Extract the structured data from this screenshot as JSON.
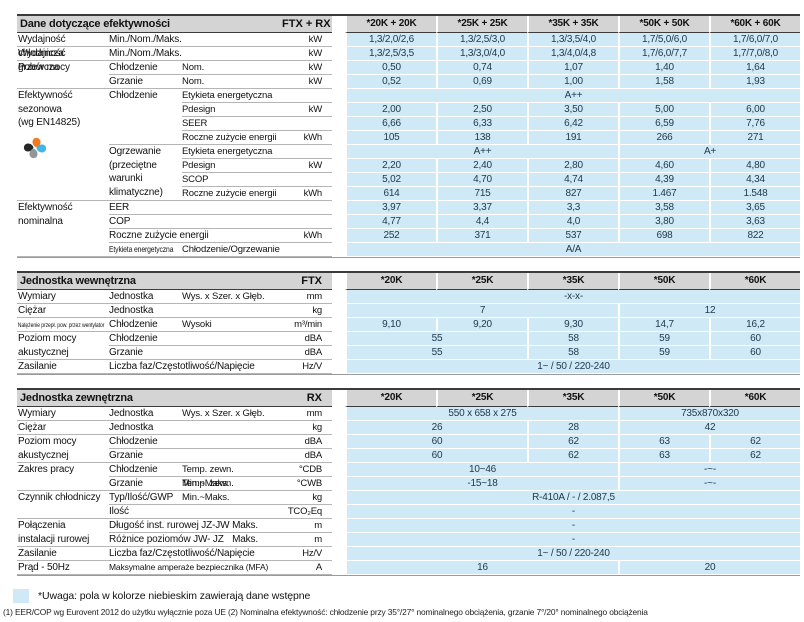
{
  "colors": {
    "data_cell_bg": "#cfe9f7",
    "section_header_bg": "#d4d4d4",
    "pinwheel_petals": [
      "#f07c1e",
      "#272727",
      "#45b5e8",
      "#919699"
    ]
  },
  "sections": [
    {
      "title": "Dane dotyczące efektywności",
      "model": "FTX + RX",
      "columns": [
        "*20K + 20K",
        "*25K + 25K",
        "*35K + 35K",
        "*50K + 50K",
        "*60K + 60K"
      ],
      "labels": [
        {
          "r": 1,
          "c": 1,
          "t": "Wydajność chłodnicza"
        },
        {
          "r": 1,
          "c": 2,
          "cs": 2,
          "t": "Min./Nom./Maks."
        },
        {
          "r": 2,
          "c": 1,
          "t": "Wydajność grzewcza"
        },
        {
          "r": 2,
          "c": 2,
          "cs": 2,
          "t": "Min./Nom./Maks."
        },
        {
          "r": 3,
          "c": 1,
          "rs": 2,
          "t": "Pobór mocy"
        },
        {
          "r": 3,
          "c": 2,
          "t": "Chłodzenie"
        },
        {
          "r": 3,
          "c": 3,
          "t": "Nom."
        },
        {
          "r": 4,
          "c": 2,
          "t": "Grzanie"
        },
        {
          "r": 4,
          "c": 3,
          "t": "Nom."
        },
        {
          "r": 5,
          "c": 1,
          "rs": 8,
          "t": "Efektywność\nsezonowa\n(wg EN14825)",
          "icon": "seasonal-efficiency-pinwheel-icon"
        },
        {
          "r": 5,
          "c": 2,
          "rs": 4,
          "t": "Chłodzenie"
        },
        {
          "r": 5,
          "c": 3,
          "t": "Etykieta energetyczna"
        },
        {
          "r": 6,
          "c": 3,
          "t": "Pdesign"
        },
        {
          "r": 7,
          "c": 3,
          "t": "SEER"
        },
        {
          "r": 8,
          "c": 3,
          "t": "Roczne zużycie energii"
        },
        {
          "r": 9,
          "c": 2,
          "rs": 4,
          "t": "Ogrzewanie\n(przeciętne\nwarunki\nklimatyczne)"
        },
        {
          "r": 9,
          "c": 3,
          "t": "Etykieta energetyczna"
        },
        {
          "r": 10,
          "c": 3,
          "t": "Pdesign"
        },
        {
          "r": 11,
          "c": 3,
          "t": "SCOP"
        },
        {
          "r": 12,
          "c": 3,
          "t": "Roczne zużycie energii"
        },
        {
          "r": 13,
          "c": 1,
          "rs": 4,
          "t": "Efektywność\nnominalna"
        },
        {
          "r": 13,
          "c": 2,
          "cs": 2,
          "t": "EER"
        },
        {
          "r": 14,
          "c": 2,
          "cs": 2,
          "t": "COP"
        },
        {
          "r": 15,
          "c": 2,
          "cs": 2,
          "t": "Roczne zużycie energii"
        },
        {
          "r": 16,
          "c": 2,
          "t": "Etykieta energetyczna",
          "s": "smx"
        },
        {
          "r": 16,
          "c": 3,
          "t": "Chłodzenie/Ogrzewanie"
        }
      ],
      "units": [
        "kW",
        "kW",
        "kW",
        "kW",
        "",
        "kW",
        "",
        "kWh",
        "",
        "kW",
        "",
        "kWh",
        "",
        "",
        "kWh",
        ""
      ],
      "values": [
        [
          [
            "1,3/2,0/2,6",
            1
          ],
          [
            "1,3/2,5/3,0",
            1
          ],
          [
            "1,3/3,5/4,0",
            1
          ],
          [
            "1,7/5,0/6,0",
            1
          ],
          [
            "1,7/6,0/7,0",
            1
          ]
        ],
        [
          [
            "1,3/2,5/3,5",
            1
          ],
          [
            "1,3/3,0/4,0",
            1
          ],
          [
            "1,3/4,0/4,8",
            1
          ],
          [
            "1,7/6,0/7,7",
            1
          ],
          [
            "1,7/7,0/8,0",
            1
          ]
        ],
        [
          [
            "0,50",
            1
          ],
          [
            "0,74",
            1
          ],
          [
            "1,07",
            1
          ],
          [
            "1,40",
            1
          ],
          [
            "1,64",
            1
          ]
        ],
        [
          [
            "0,52",
            1
          ],
          [
            "0,69",
            1
          ],
          [
            "1,00",
            1
          ],
          [
            "1,58",
            1
          ],
          [
            "1,93",
            1
          ]
        ],
        [
          [
            "A++",
            5
          ]
        ],
        [
          [
            "2,00",
            1
          ],
          [
            "2,50",
            1
          ],
          [
            "3,50",
            1
          ],
          [
            "5,00",
            1
          ],
          [
            "6,00",
            1
          ]
        ],
        [
          [
            "6,66",
            1
          ],
          [
            "6,33",
            1
          ],
          [
            "6,42",
            1
          ],
          [
            "6,59",
            1
          ],
          [
            "7,76",
            1
          ]
        ],
        [
          [
            "105",
            1
          ],
          [
            "138",
            1
          ],
          [
            "191",
            1
          ],
          [
            "266",
            1
          ],
          [
            "271",
            1
          ]
        ],
        [
          [
            "A++",
            3
          ],
          [
            "A+",
            2
          ]
        ],
        [
          [
            "2,20",
            1
          ],
          [
            "2,40",
            1
          ],
          [
            "2,80",
            1
          ],
          [
            "4,60",
            1
          ],
          [
            "4,80",
            1
          ]
        ],
        [
          [
            "5,02",
            1
          ],
          [
            "4,70",
            1
          ],
          [
            "4,74",
            1
          ],
          [
            "4,39",
            1
          ],
          [
            "4,34",
            1
          ]
        ],
        [
          [
            "614",
            1
          ],
          [
            "715",
            1
          ],
          [
            "827",
            1
          ],
          [
            "1.467",
            1
          ],
          [
            "1.548",
            1
          ]
        ],
        [
          [
            "3,97",
            1
          ],
          [
            "3,37",
            1
          ],
          [
            "3,3",
            1
          ],
          [
            "3,58",
            1
          ],
          [
            "3,65",
            1
          ]
        ],
        [
          [
            "4,77",
            1
          ],
          [
            "4,4",
            1
          ],
          [
            "4,0",
            1
          ],
          [
            "3,80",
            1
          ],
          [
            "3,63",
            1
          ]
        ],
        [
          [
            "252",
            1
          ],
          [
            "371",
            1
          ],
          [
            "537",
            1
          ],
          [
            "698",
            1
          ],
          [
            "822",
            1
          ]
        ],
        [
          [
            "A/A",
            5
          ]
        ]
      ]
    },
    {
      "title": "Jednostka wewnętrzna",
      "model": "FTX",
      "columns": [
        "*20K",
        "*25K",
        "*35K",
        "*50K",
        "*60K"
      ],
      "labels": [
        {
          "r": 1,
          "c": 1,
          "t": "Wymiary"
        },
        {
          "r": 1,
          "c": 2,
          "t": "Jednostka"
        },
        {
          "r": 1,
          "c": 3,
          "t": "Wys. x Szer. x Głęb."
        },
        {
          "r": 2,
          "c": 1,
          "t": "Ciężar"
        },
        {
          "r": 2,
          "c": 2,
          "cs": 2,
          "t": "Jednostka"
        },
        {
          "r": 3,
          "c": 1,
          "t": "Natężenie przepł. pow. przez wentylator",
          "s": "xs"
        },
        {
          "r": 3,
          "c": 2,
          "t": "Chłodzenie"
        },
        {
          "r": 3,
          "c": 3,
          "t": "Wysoki"
        },
        {
          "r": 4,
          "c": 1,
          "rs": 2,
          "t": "Poziom mocy\nakustycznej"
        },
        {
          "r": 4,
          "c": 2,
          "cs": 2,
          "t": "Chłodzenie"
        },
        {
          "r": 5,
          "c": 2,
          "cs": 2,
          "t": "Grzanie"
        },
        {
          "r": 6,
          "c": 1,
          "t": "Zasilanie"
        },
        {
          "r": 6,
          "c": 2,
          "cs": 2,
          "t": "Liczba faz/Częstotliwość/Napięcie"
        }
      ],
      "units": [
        "mm",
        "kg",
        "m³/min",
        "dBA",
        "dBA",
        "Hz/V"
      ],
      "values": [
        [
          [
            "-x-x-",
            5
          ]
        ],
        [
          [
            "7",
            3
          ],
          [
            "12",
            2
          ]
        ],
        [
          [
            "9,10",
            1
          ],
          [
            "9,20",
            1
          ],
          [
            "9,30",
            1
          ],
          [
            "14,7",
            1
          ],
          [
            "16,2",
            1
          ]
        ],
        [
          [
            "55",
            2
          ],
          [
            "58",
            1
          ],
          [
            "59",
            1
          ],
          [
            "60",
            1
          ]
        ],
        [
          [
            "55",
            2
          ],
          [
            "58",
            1
          ],
          [
            "59",
            1
          ],
          [
            "60",
            1
          ]
        ],
        [
          [
            "1~ / 50 / 220-240",
            5
          ]
        ]
      ]
    },
    {
      "title": "Jednostka zewnętrzna",
      "model": "RX",
      "columns": [
        "*20K",
        "*25K",
        "*35K",
        "*50K",
        "*60K"
      ],
      "labels": [
        {
          "r": 1,
          "c": 1,
          "t": "Wymiary"
        },
        {
          "r": 1,
          "c": 2,
          "t": "Jednostka"
        },
        {
          "r": 1,
          "c": 3,
          "t": "Wys. x Szer. x Głęb."
        },
        {
          "r": 2,
          "c": 1,
          "t": "Ciężar"
        },
        {
          "r": 2,
          "c": 2,
          "cs": 2,
          "t": "Jednostka"
        },
        {
          "r": 3,
          "c": 1,
          "rs": 2,
          "t": "Poziom mocy\nakustycznej"
        },
        {
          "r": 3,
          "c": 2,
          "cs": 2,
          "t": "Chłodzenie"
        },
        {
          "r": 4,
          "c": 2,
          "cs": 2,
          "t": "Grzanie"
        },
        {
          "r": 5,
          "c": 1,
          "rs": 2,
          "t": "Zakres pracy"
        },
        {
          "r": 5,
          "c": 2,
          "t": "Chłodzenie"
        },
        {
          "r": 5,
          "c": 3,
          "t": "Temp. zewn. Min.~Maks."
        },
        {
          "r": 6,
          "c": 2,
          "t": "Grzanie"
        },
        {
          "r": 6,
          "c": 3,
          "t": "Temp. zewn. Min.~Maks."
        },
        {
          "r": 7,
          "c": 1,
          "rs": 2,
          "t": "Czynnik chłodniczy"
        },
        {
          "r": 7,
          "c": 2,
          "cs": 2,
          "t": "Typ/Ilość/GWP"
        },
        {
          "r": 8,
          "c": 2,
          "cs": 2,
          "t": "Ilość"
        },
        {
          "r": 9,
          "c": 1,
          "rs": 2,
          "t": "Połączenia\ninstalacji rurowej"
        },
        {
          "r": 9,
          "c": 2,
          "cs": 2,
          "t": "Długość inst. rurowej JZ-JW",
          "right": "Maks."
        },
        {
          "r": 10,
          "c": 2,
          "cs": 2,
          "t": "Różnice poziomów JW- JZ",
          "right": "Maks."
        },
        {
          "r": 11,
          "c": 1,
          "t": "Zasilanie"
        },
        {
          "r": 11,
          "c": 2,
          "cs": 2,
          "t": "Liczba faz/Częstotliwość/Napięcie"
        },
        {
          "r": 12,
          "c": 1,
          "t": "Prąd - 50Hz"
        },
        {
          "r": 12,
          "c": 2,
          "cs": 2,
          "t": "Maksymalne amperaże bezpiecznika (MFA)",
          "s": "sm"
        }
      ],
      "units": [
        "mm",
        "kg",
        "dBA",
        "dBA",
        "°CDB",
        "°CWB",
        "kg",
        "TCO₂Eq",
        "m",
        "m",
        "Hz/V",
        "A"
      ],
      "values": [
        [
          [
            "550 x 658 x 275",
            3
          ],
          [
            "735x870x320",
            2
          ]
        ],
        [
          [
            "26",
            2
          ],
          [
            "28",
            1
          ],
          [
            "42",
            2
          ]
        ],
        [
          [
            "60",
            2
          ],
          [
            "62",
            1
          ],
          [
            "63",
            1
          ],
          [
            "62",
            1
          ]
        ],
        [
          [
            "60",
            2
          ],
          [
            "62",
            1
          ],
          [
            "63",
            1
          ],
          [
            "62",
            1
          ]
        ],
        [
          [
            "10~46",
            3
          ],
          [
            "-~-",
            2
          ]
        ],
        [
          [
            "-15~18",
            3
          ],
          [
            "-~-",
            2
          ]
        ],
        [
          [
            "R-410A / - / 2.087,5",
            5
          ]
        ],
        [
          [
            "-",
            5
          ]
        ],
        [
          [
            "-",
            5
          ]
        ],
        [
          [
            "-",
            5
          ]
        ],
        [
          [
            "1~ / 50 / 220-240",
            5
          ]
        ],
        [
          [
            "16",
            3
          ],
          [
            "20",
            2
          ]
        ]
      ]
    }
  ],
  "footer": {
    "legend": "*Uwaga: pola w kolorze niebieskim zawierają dane wstępne",
    "footnote": "(1) EER/COP wg Eurovent 2012 do użytku wyłącznie poza UE (2) Nominalna efektywność: chłodzenie przy 35°/27° nominalnego obciążenia, grzanie 7°/20° nominalnego obciążenia"
  }
}
